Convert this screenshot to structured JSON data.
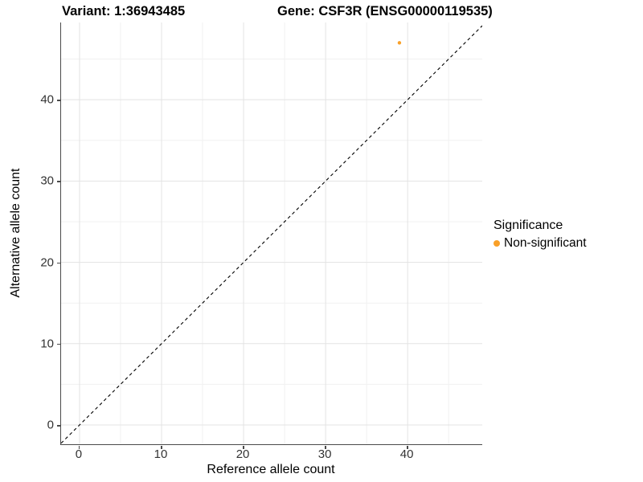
{
  "chart_data": {
    "type": "scatter",
    "title_left": "Variant: 1:36943485",
    "title_right": "Gene: CSF3R (ENSG00000119535)",
    "xlabel": "Reference allele count",
    "ylabel": "Alternative allele count",
    "xlim": [
      -2.25,
      49.1
    ],
    "ylim": [
      -2.37,
      49.5
    ],
    "xticks": [
      0,
      10,
      20,
      30,
      40
    ],
    "yticks": [
      0,
      10,
      20,
      30,
      40
    ],
    "minor_xticks": [
      5,
      15,
      25,
      35,
      45
    ],
    "minor_yticks": [
      5,
      15,
      25,
      35,
      45
    ],
    "grid": true,
    "series": [
      {
        "name": "Non-significant",
        "color": "#F9A028",
        "point_radius": 2.2,
        "points": [
          {
            "x": 39,
            "y": 47
          }
        ]
      }
    ],
    "reference_line": {
      "type": "identity",
      "style": "dashed",
      "color": "#000000"
    },
    "legend": {
      "position": "right",
      "title": "Significance",
      "entries": [
        {
          "label": "Non-significant",
          "color": "#F9A028"
        }
      ]
    },
    "colors": {
      "grid_major": "#E3E3E3",
      "grid_minor": "#F1F1F1",
      "axis_line": "#4A4A4A",
      "tick_text": "#333333"
    }
  }
}
